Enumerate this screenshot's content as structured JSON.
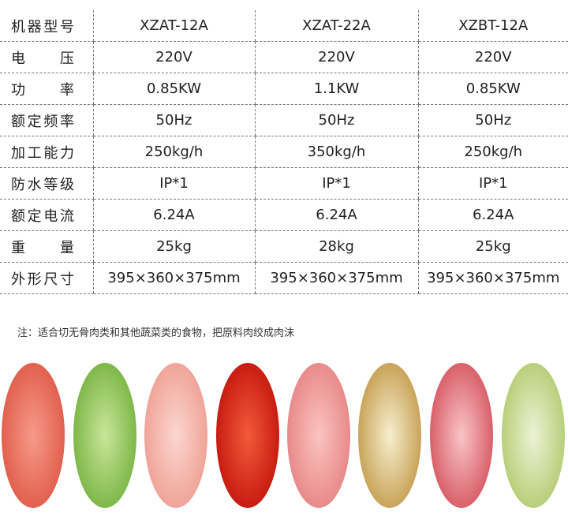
{
  "table": {
    "rows": [
      [
        "机器型号",
        "XZAT-12A",
        "XZAT-22A",
        "XZBT-12A"
      ],
      [
        "电压",
        "220V",
        "220V",
        "220V"
      ],
      [
        "功率",
        "0.85KW",
        "1.1KW",
        "0.85KW"
      ],
      [
        "额定频率",
        "50Hz",
        "50Hz",
        "50Hz"
      ],
      [
        "加工能力",
        "250kg/h",
        "350kg/h",
        "250kg/h"
      ],
      [
        "防水等级",
        "IP*1",
        "IP*1",
        "IP*1"
      ],
      [
        "额定电流",
        "6.24A",
        "6.24A",
        "6.24A"
      ],
      [
        "重量",
        "25kg",
        "28kg",
        "25kg"
      ],
      [
        "外形尺寸",
        "395×360×375mm",
        "395×360×375mm",
        "395×360×375mm"
      ]
    ]
  },
  "note": "注：适合切无骨肉类和其他蔬菜类的食物，把原料肉绞成肉沫"
}
